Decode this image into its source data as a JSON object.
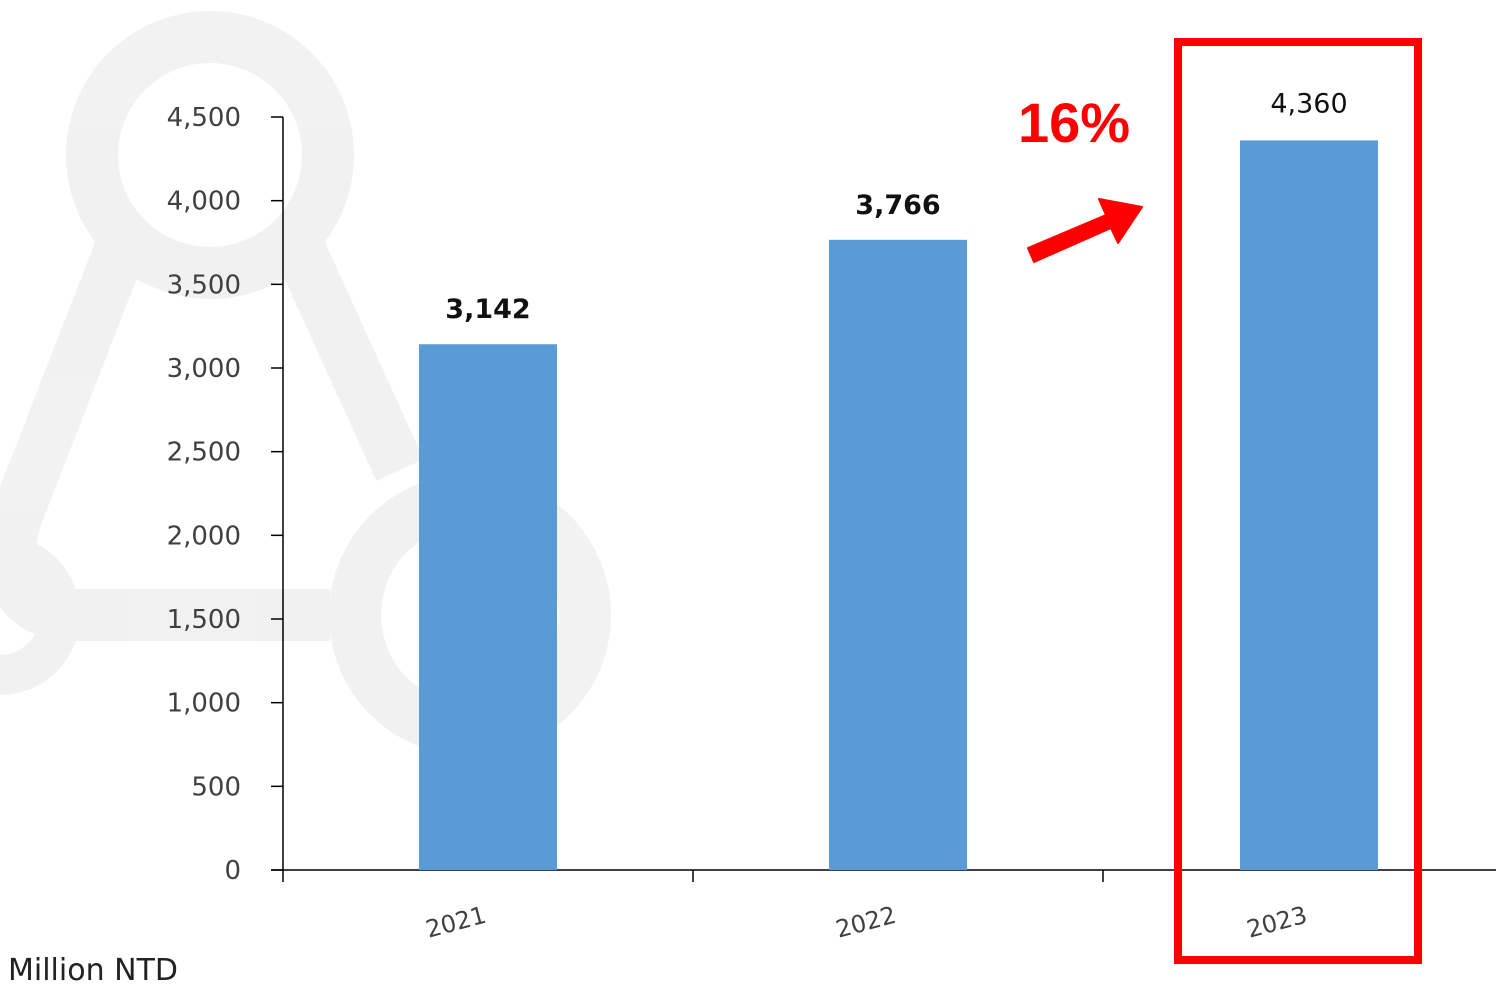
{
  "chart_data": {
    "type": "bar",
    "categories": [
      "2021",
      "2022",
      "2023"
    ],
    "values": [
      3142,
      3766,
      4360
    ],
    "data_labels": [
      "3,142",
      "3,766",
      "4,360"
    ],
    "title": "",
    "xlabel": "",
    "ylabel": "",
    "unit": "Million NTD",
    "ylim": [
      0,
      4500
    ],
    "yticks": [
      0,
      500,
      1000,
      1500,
      2000,
      2500,
      3000,
      3500,
      4000,
      4500
    ],
    "ytick_labels": [
      "0",
      "500",
      "1,000",
      "1,500",
      "2,000",
      "2,500",
      "3,000",
      "3,500",
      "4,000",
      "4,500"
    ],
    "grid": false,
    "legend": "none",
    "bar_color": "#5B9BD5",
    "highlight": {
      "category": "2023",
      "growth_label": "16%",
      "color": "#FF0000"
    }
  }
}
